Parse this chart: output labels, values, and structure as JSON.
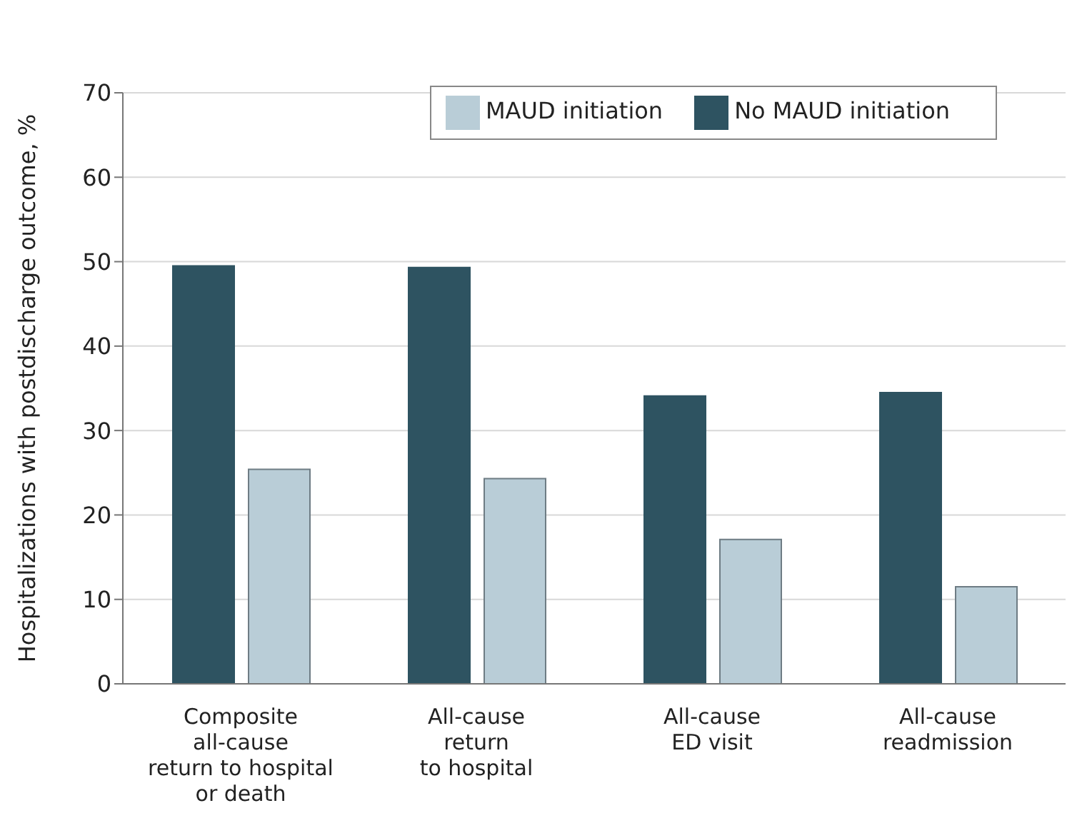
{
  "chart_data": {
    "type": "bar",
    "ylabel": "Hospitalizations with postdischarge outcome, %",
    "categories": [
      "Composite\nall-cause\nreturn to hospital\nor death",
      "All-cause\nreturn\nto hospital",
      "All-cause\nED visit",
      "All-cause\nreadmission"
    ],
    "series": [
      {
        "name": "No MAUD initiation",
        "color": "#2e5361",
        "values": [
          49.5,
          49.3,
          34.1,
          34.5
        ]
      },
      {
        "name": "MAUD initiation",
        "color": "#b9cdd7",
        "values": [
          25.4,
          24.3,
          17.1,
          11.5
        ]
      }
    ],
    "ylim": [
      0,
      70
    ],
    "yticks": [
      0,
      10,
      20,
      30,
      40,
      50,
      60,
      70
    ],
    "grid": "y",
    "legend": "top right"
  }
}
